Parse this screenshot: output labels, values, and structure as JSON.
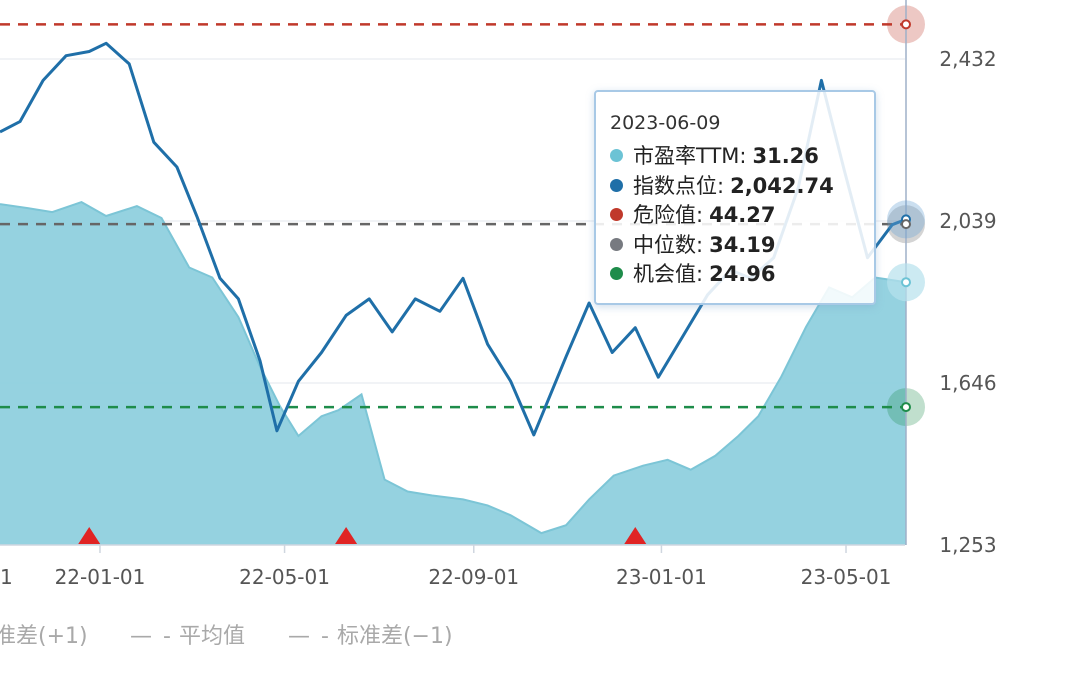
{
  "chart_data": {
    "type": "line",
    "x_ticks": [
      "22-01-01",
      "22-05-01",
      "22-09-01",
      "23-01-01",
      "23-05-01"
    ],
    "x_first_tick_partial": "1",
    "y_right_ticks": [
      "1,253",
      "1,646",
      "2,039",
      "2,432"
    ],
    "y_right_range": [
      1253,
      2575
    ],
    "pe_range": [
      18,
      45.5
    ],
    "reference_lines": [
      {
        "name": "危险值",
        "value": 44.27,
        "color": "#c0392b"
      },
      {
        "name": "中位数",
        "value": 34.19,
        "color": "#666666"
      },
      {
        "name": "机会值",
        "value": 24.96,
        "color": "#1e8c4a"
      }
    ],
    "series": [
      {
        "name": "市盈率TTM",
        "color": "#6cc3d5",
        "x": [
          "2021-10-28",
          "2021-11-15",
          "2021-12-01",
          "2021-12-20",
          "2022-01-05",
          "2022-01-25",
          "2022-02-10",
          "2022-02-28",
          "2022-03-15",
          "2022-04-01",
          "2022-04-15",
          "2022-04-28",
          "2022-05-10",
          "2022-05-25",
          "2022-06-05",
          "2022-06-20",
          "2022-07-05",
          "2022-07-20",
          "2022-08-05",
          "2022-08-25",
          "2022-09-10",
          "2022-09-25",
          "2022-10-15",
          "2022-10-31",
          "2022-11-15",
          "2022-12-01",
          "2022-12-20",
          "2023-01-05",
          "2023-01-20",
          "2023-02-05",
          "2023-02-20",
          "2023-03-05",
          "2023-03-20",
          "2023-04-05",
          "2023-04-20",
          "2023-05-05",
          "2023-05-20",
          "2023-06-09"
        ],
        "values": [
          35.2,
          35.0,
          34.8,
          35.3,
          34.6,
          35.1,
          34.5,
          32.0,
          31.5,
          29.5,
          27.0,
          25.0,
          23.5,
          24.5,
          24.8,
          25.6,
          21.3,
          20.7,
          20.5,
          20.3,
          20.0,
          19.5,
          18.6,
          19.0,
          20.3,
          21.5,
          22.0,
          22.3,
          21.8,
          22.5,
          23.5,
          24.5,
          26.5,
          29.0,
          31.0,
          30.5,
          31.5,
          31.26
        ]
      },
      {
        "name": "指数点位",
        "color": "#1f6fa8",
        "x": [
          "2021-10-28",
          "2021-11-10",
          "2021-11-25",
          "2021-12-10",
          "2021-12-25",
          "2022-01-05",
          "2022-01-20",
          "2022-02-05",
          "2022-02-20",
          "2022-03-05",
          "2022-03-20",
          "2022-04-01",
          "2022-04-15",
          "2022-04-26",
          "2022-05-10",
          "2022-05-25",
          "2022-06-10",
          "2022-06-25",
          "2022-07-10",
          "2022-07-25",
          "2022-08-10",
          "2022-08-25",
          "2022-09-10",
          "2022-09-25",
          "2022-10-10",
          "2022-10-31",
          "2022-11-15",
          "2022-11-30",
          "2022-12-15",
          "2022-12-30",
          "2023-01-15",
          "2023-01-31",
          "2023-02-15",
          "2023-02-28",
          "2023-03-15",
          "2023-03-31",
          "2023-04-15",
          "2023-04-30",
          "2023-05-15",
          "2023-05-31",
          "2023-06-09"
        ],
        "values": [
          2255,
          2280,
          2380,
          2440,
          2450,
          2470,
          2420,
          2230,
          2170,
          2050,
          1900,
          1850,
          1700,
          1530,
          1650,
          1720,
          1810,
          1850,
          1770,
          1850,
          1820,
          1900,
          1740,
          1650,
          1520,
          1710,
          1840,
          1720,
          1780,
          1660,
          1760,
          1860,
          1920,
          1900,
          1950,
          2120,
          2380,
          2160,
          1950,
          2030,
          2042.74
        ]
      }
    ],
    "markers": {
      "shape": "triangle",
      "color": "#e02424",
      "x": [
        "2021-12-25",
        "2022-06-10",
        "2022-12-15"
      ]
    },
    "legend": [
      {
        "label": "准差(+1)"
      },
      {
        "label": "平均值"
      },
      {
        "label": "标准差(−1)"
      }
    ],
    "tooltip": {
      "date": "2023-06-09",
      "rows": [
        {
          "label": "市盈率TTM:",
          "value": "31.26",
          "color": "#6cc3d5"
        },
        {
          "label": "指数点位:",
          "value": "2,042.74",
          "color": "#1f6fa8"
        },
        {
          "label": "危险值:",
          "value": "44.27",
          "color": "#c0392b"
        },
        {
          "label": "中位数:",
          "value": "34.19",
          "color": "#777a80"
        },
        {
          "label": "机会值:",
          "value": "24.96",
          "color": "#1e8c4a"
        }
      ]
    }
  }
}
